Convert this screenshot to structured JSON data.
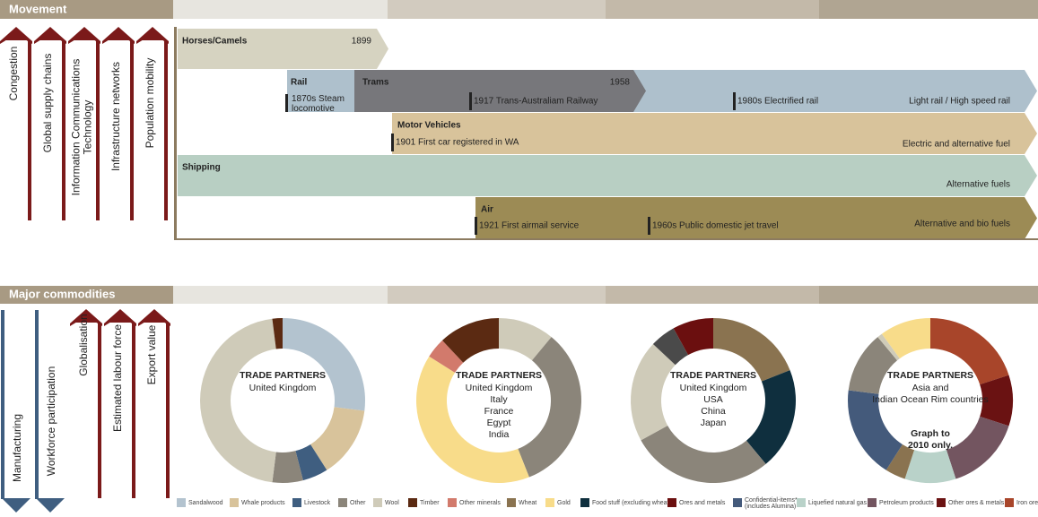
{
  "movement": {
    "title": "Movement",
    "drivers": [
      "Congestion",
      "Global supply chains",
      [
        "Information Communications",
        "Technology"
      ],
      "Infrastructure networks",
      "Population mobility"
    ],
    "bars": [
      {
        "label": "Horses/Camels",
        "notes": [
          "1899"
        ]
      },
      {
        "label": "Rail",
        "notes": [
          [
            "1870s Steam",
            "locomotive"
          ]
        ]
      },
      {
        "label": "Trams",
        "notes": [
          "1958",
          "1917 Trans-Australiam Railway",
          "1980s Electrified rail",
          "Light rail / High speed rail"
        ]
      },
      {
        "label": "Motor Vehicles",
        "notes": [
          "1901 First car registered in WA",
          "Electric and alternative fuel"
        ]
      },
      {
        "label": "Shipping",
        "notes": [
          "Alternative fuels"
        ]
      },
      {
        "label": "Air",
        "notes": [
          "1921 First airmail service",
          "1960s Public domestic jet travel",
          "Alternative and bio fuels"
        ]
      }
    ]
  },
  "commodities": {
    "title": "Major commodities",
    "down_drivers": [
      "Manufacturing",
      "Workforce participation"
    ],
    "up_drivers": [
      "Globalisation",
      "Estimated labour force",
      "Export value"
    ],
    "donuts": [
      {
        "heading": "TRADE PARTNERS",
        "lines": [
          "United Kingdom"
        ],
        "segments": [
          {
            "value": 27,
            "color": "#b3c3cf"
          },
          {
            "value": 14,
            "color": "#d8c39b"
          },
          {
            "value": 5,
            "color": "#3f5e80"
          },
          {
            "value": 6,
            "color": "#8b857a"
          },
          {
            "value": 46,
            "color": "#cfcbb9"
          },
          {
            "value": 2,
            "color": "#5b2a12"
          }
        ]
      },
      {
        "heading": "TRADE PARTNERS",
        "lines": [
          "United Kingdom",
          "Italy",
          "France",
          "Egypt",
          "India"
        ],
        "segments": [
          {
            "value": 11,
            "color": "#cfcbb9"
          },
          {
            "value": 33,
            "color": "#8b857a"
          },
          {
            "value": 40,
            "color": "#f8dc8a"
          },
          {
            "value": 4,
            "color": "#d27a6c"
          },
          {
            "value": 12,
            "color": "#5b2a12"
          }
        ]
      },
      {
        "heading": "TRADE PARTNERS",
        "lines": [
          "United Kingdom",
          "USA",
          "China",
          "Japan"
        ],
        "segments": [
          {
            "value": 19,
            "color": "#8a7350"
          },
          {
            "value": 20,
            "color": "#0f2f3e"
          },
          {
            "value": 28,
            "color": "#8b857a"
          },
          {
            "value": 20,
            "color": "#cfcbb9"
          },
          {
            "value": 5,
            "color": "#4a4a4a"
          },
          {
            "value": 8,
            "color": "#6b0f0f"
          }
        ]
      },
      {
        "heading": "TRADE PARTNERS",
        "lines": [
          "Asia and",
          "Indian Ocean Rim countries"
        ],
        "note": [
          "Graph to",
          "2010 only."
        ],
        "segments": [
          {
            "value": 20,
            "color": "#a8452a"
          },
          {
            "value": 10,
            "color": "#6a1212"
          },
          {
            "value": 15,
            "color": "#735560"
          },
          {
            "value": 10,
            "color": "#b9d2c9"
          },
          {
            "value": 4,
            "color": "#8a7350"
          },
          {
            "value": 18,
            "color": "#445a7b"
          },
          {
            "value": 12,
            "color": "#8b857a"
          },
          {
            "value": 1,
            "color": "#cfcbb9"
          },
          {
            "value": 10,
            "color": "#f8dc8a"
          }
        ]
      }
    ],
    "legend": [
      {
        "name": "Sandalwood",
        "color": "#b3c3cf"
      },
      {
        "name": "Whale products",
        "color": "#d8c39b"
      },
      {
        "name": "Livestock",
        "color": "#3f5e80"
      },
      {
        "name": "Other",
        "color": "#8b857a"
      },
      {
        "name": "Wool",
        "color": "#cfcbb9"
      },
      {
        "name": "Timber",
        "color": "#5b2a12"
      },
      {
        "name": "Other minerals",
        "color": "#d27a6c"
      },
      {
        "name": "Wheat",
        "color": "#8a7350"
      },
      {
        "name": "Gold",
        "color": "#f8dc8a"
      },
      {
        "name": "Food stuff (excluding wheat)",
        "color": "#0f2f3e"
      },
      {
        "name": "Ores and metals",
        "color": "#6b0f0f"
      },
      {
        "name": [
          "Confidential-items*",
          "(includes Alumina)"
        ],
        "color": "#445a7b"
      },
      {
        "name": "Liquefied natural gas",
        "color": "#b9d2c9"
      },
      {
        "name": "Petroleum products",
        "color": "#735560"
      },
      {
        "name": "Other ores & metals",
        "color": "#6a1212"
      },
      {
        "name": "Iron ore",
        "color": "#a8452a"
      }
    ]
  }
}
